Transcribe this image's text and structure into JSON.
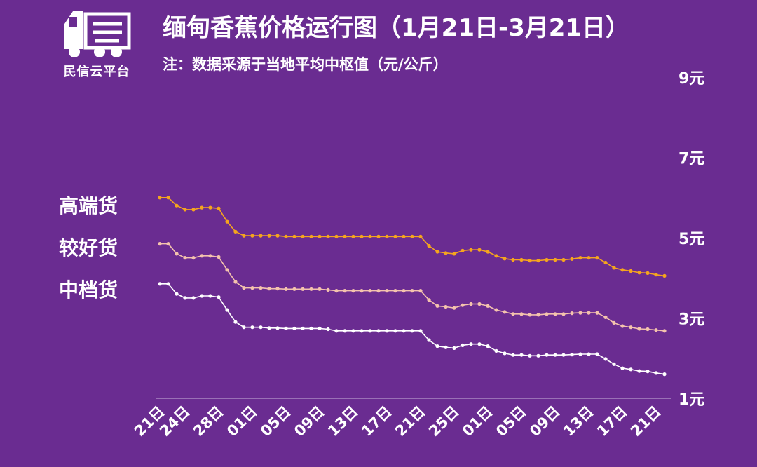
{
  "logo": {
    "name": "民信云平台",
    "icon": "truck-icon"
  },
  "title": "缅甸香蕉价格运行图（1月21日-3月21日）",
  "subtitle": "注：数据采源于当地平均中枢值（元/公斤）",
  "colors": {
    "background": "#6a2c91",
    "high": "#f5a51e",
    "good": "#f4c3ad",
    "mid": "#ffffff",
    "axis": "#c9b3dc"
  },
  "chart_data": {
    "type": "line",
    "title": "缅甸香蕉价格运行图（1月21日-3月21日）",
    "ylim": [
      1,
      9
    ],
    "y_ticks": [
      {
        "value": 1,
        "label": "1元"
      },
      {
        "value": 3,
        "label": "3元"
      },
      {
        "value": 5,
        "label": "5元"
      },
      {
        "value": 7,
        "label": "7元"
      },
      {
        "value": 9,
        "label": "9元"
      }
    ],
    "x_ticks": [
      {
        "index": 0,
        "label": "21日"
      },
      {
        "index": 3,
        "label": "24日"
      },
      {
        "index": 7,
        "label": "28日"
      },
      {
        "index": 11,
        "label": "01日"
      },
      {
        "index": 15,
        "label": "05日"
      },
      {
        "index": 19,
        "label": "09日"
      },
      {
        "index": 23,
        "label": "13日"
      },
      {
        "index": 27,
        "label": "17日"
      },
      {
        "index": 31,
        "label": "21日"
      },
      {
        "index": 35,
        "label": "25日"
      },
      {
        "index": 39,
        "label": "01日"
      },
      {
        "index": 43,
        "label": "05日"
      },
      {
        "index": 47,
        "label": "09日"
      },
      {
        "index": 51,
        "label": "13日"
      },
      {
        "index": 55,
        "label": "17日"
      },
      {
        "index": 59,
        "label": "21日"
      }
    ],
    "legend": "left",
    "series": [
      {
        "name": "高端货",
        "color": "#f5a51e",
        "values": [
          6.0,
          6.0,
          5.8,
          5.7,
          5.7,
          5.75,
          5.75,
          5.73,
          5.4,
          5.15,
          5.05,
          5.05,
          5.05,
          5.05,
          5.05,
          5.03,
          5.03,
          5.03,
          5.03,
          5.03,
          5.03,
          5.03,
          5.03,
          5.03,
          5.03,
          5.03,
          5.03,
          5.03,
          5.03,
          5.03,
          5.03,
          5.03,
          4.8,
          4.65,
          4.62,
          4.6,
          4.68,
          4.7,
          4.7,
          4.65,
          4.55,
          4.48,
          4.45,
          4.45,
          4.43,
          4.43,
          4.45,
          4.45,
          4.45,
          4.47,
          4.5,
          4.5,
          4.5,
          4.38,
          4.25,
          4.2,
          4.17,
          4.13,
          4.12,
          4.08,
          4.05
        ]
      },
      {
        "name": "较好货",
        "color": "#f4c3ad",
        "values": [
          4.85,
          4.85,
          4.6,
          4.5,
          4.5,
          4.55,
          4.55,
          4.52,
          4.2,
          3.9,
          3.75,
          3.75,
          3.75,
          3.73,
          3.73,
          3.72,
          3.72,
          3.72,
          3.72,
          3.72,
          3.7,
          3.68,
          3.68,
          3.68,
          3.68,
          3.68,
          3.68,
          3.68,
          3.68,
          3.68,
          3.68,
          3.68,
          3.45,
          3.3,
          3.28,
          3.25,
          3.32,
          3.35,
          3.35,
          3.3,
          3.2,
          3.15,
          3.1,
          3.1,
          3.08,
          3.08,
          3.1,
          3.1,
          3.1,
          3.12,
          3.13,
          3.13,
          3.13,
          3.02,
          2.88,
          2.8,
          2.77,
          2.73,
          2.72,
          2.7,
          2.68
        ]
      },
      {
        "name": "中档货",
        "color": "#ffffff",
        "values": [
          3.85,
          3.85,
          3.6,
          3.5,
          3.5,
          3.55,
          3.55,
          3.52,
          3.2,
          2.9,
          2.77,
          2.77,
          2.77,
          2.75,
          2.75,
          2.74,
          2.74,
          2.74,
          2.74,
          2.74,
          2.72,
          2.68,
          2.68,
          2.68,
          2.68,
          2.68,
          2.68,
          2.68,
          2.68,
          2.68,
          2.68,
          2.68,
          2.45,
          2.3,
          2.27,
          2.25,
          2.32,
          2.35,
          2.35,
          2.3,
          2.18,
          2.12,
          2.08,
          2.08,
          2.06,
          2.06,
          2.08,
          2.08,
          2.08,
          2.09,
          2.1,
          2.1,
          2.1,
          1.98,
          1.85,
          1.75,
          1.72,
          1.68,
          1.67,
          1.63,
          1.6
        ]
      }
    ]
  }
}
